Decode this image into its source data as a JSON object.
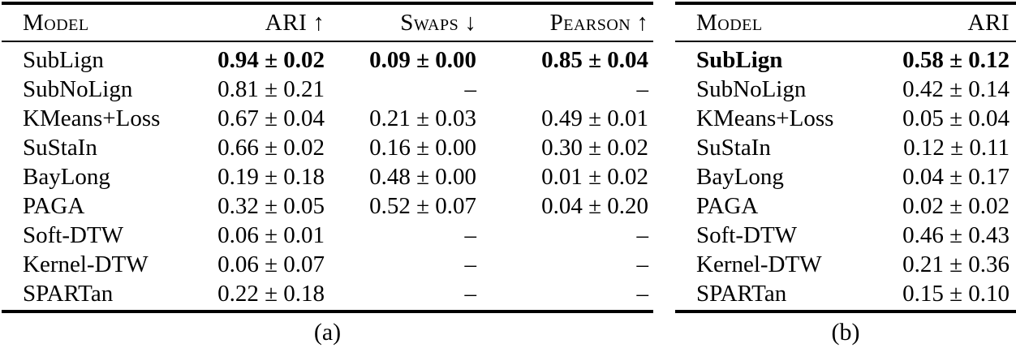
{
  "page": {
    "background_color": "#ffffff",
    "text_color": "#000000"
  },
  "tables": [
    {
      "caption": "(a)",
      "headers": [
        {
          "label": "Model",
          "arrow": ""
        },
        {
          "label": "ARI",
          "arrow": "↑"
        },
        {
          "label": "Swaps",
          "arrow": "↓"
        },
        {
          "label": "Pearson",
          "arrow": "↑"
        }
      ],
      "rows": [
        {
          "model": "SubLign",
          "ari": "0.94 ± 0.02",
          "swaps": "0.09 ± 0.00",
          "pearson": "0.85 ± 0.04"
        },
        {
          "model": "SubNoLign",
          "ari": "0.81 ± 0.21",
          "swaps": "–",
          "pearson": "–"
        },
        {
          "model": "KMeans+Loss",
          "ari": "0.67 ± 0.04",
          "swaps": "0.21 ± 0.03",
          "pearson": "0.49 ± 0.01"
        },
        {
          "model": "SuStaIn",
          "ari": "0.66 ± 0.02",
          "swaps": "0.16 ± 0.00",
          "pearson": "0.30 ± 0.02"
        },
        {
          "model": "BayLong",
          "ari": "0.19 ± 0.18",
          "swaps": "0.48 ± 0.00",
          "pearson": "0.01 ± 0.02"
        },
        {
          "model": "PAGA",
          "ari": "0.32 ± 0.05",
          "swaps": "0.52 ± 0.07",
          "pearson": "0.04 ± 0.20"
        },
        {
          "model": "Soft-DTW",
          "ari": "0.06 ± 0.01",
          "swaps": "–",
          "pearson": "–"
        },
        {
          "model": "Kernel-DTW",
          "ari": "0.06 ± 0.07",
          "swaps": "–",
          "pearson": "–"
        },
        {
          "model": "SPARTan",
          "ari": "0.22 ± 0.18",
          "swaps": "–",
          "pearson": "–"
        }
      ]
    },
    {
      "caption": "(b)",
      "headers": [
        {
          "label": "Model",
          "arrow": ""
        },
        {
          "label": "ARI",
          "arrow": ""
        }
      ],
      "rows": [
        {
          "model": "SubLign",
          "ari": "0.58 ± 0.12"
        },
        {
          "model": "SubNoLign",
          "ari": "0.42 ± 0.14"
        },
        {
          "model": "KMeans+Loss",
          "ari": "0.05 ± 0.04"
        },
        {
          "model": "SuStaIn",
          "ari": "0.12 ± 0.11"
        },
        {
          "model": "BayLong",
          "ari": "0.04 ± 0.17"
        },
        {
          "model": "PAGA",
          "ari": "0.02 ± 0.02"
        },
        {
          "model": "Soft-DTW",
          "ari": "0.46 ± 0.43"
        },
        {
          "model": "Kernel-DTW",
          "ari": "0.21 ± 0.36"
        },
        {
          "model": "SPARTan",
          "ari": "0.15 ± 0.10"
        }
      ]
    }
  ]
}
